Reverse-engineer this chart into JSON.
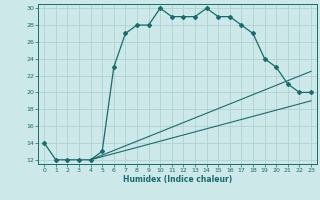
{
  "xlabel": "Humidex (Indice chaleur)",
  "ylabel": "",
  "bg_color": "#cce8e8",
  "line_color": "#1a6b6b",
  "grid_color": "#aacece",
  "xlim": [
    -0.5,
    23.5
  ],
  "ylim": [
    11.5,
    30.5
  ],
  "xticks": [
    0,
    1,
    2,
    3,
    4,
    5,
    6,
    7,
    8,
    9,
    10,
    11,
    12,
    13,
    14,
    15,
    16,
    17,
    18,
    19,
    20,
    21,
    22,
    23
  ],
  "yticks": [
    12,
    14,
    16,
    18,
    20,
    22,
    24,
    26,
    28,
    30
  ],
  "line1_x": [
    0,
    1,
    2,
    3,
    4,
    5,
    6,
    7,
    8,
    9,
    10,
    11,
    12,
    13,
    14,
    15,
    16,
    17,
    18,
    19,
    20,
    21,
    22,
    23
  ],
  "line1_y": [
    14,
    12,
    12,
    12,
    12,
    13,
    23,
    27,
    28,
    28,
    30,
    29,
    29,
    29,
    30,
    29,
    29,
    28,
    27,
    24,
    23,
    21,
    20,
    20
  ],
  "line2_x": [
    4,
    22,
    23
  ],
  "line2_y": [
    12,
    22,
    19
  ],
  "line3_x": [
    4,
    22,
    23
  ],
  "line3_y": [
    12,
    19,
    19
  ]
}
